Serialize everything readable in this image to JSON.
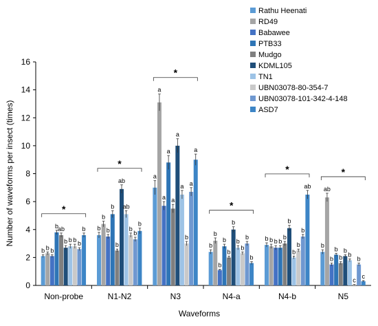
{
  "chart_data": {
    "type": "bar",
    "title": "",
    "xlabel": "Waveforms",
    "ylabel": "Number of waveforms per insect (times)",
    "ylim": [
      0,
      16
    ],
    "yticks": [
      0,
      2,
      4,
      6,
      8,
      10,
      12,
      14,
      16
    ],
    "categories": [
      "Non-probe",
      "N1-N2",
      "N3",
      "N4-a",
      "N4-b",
      "N5"
    ],
    "legend_position": "top-right",
    "grid": false,
    "series": [
      {
        "name": "Rathu Heenati",
        "color": "#5b9bd5",
        "values": [
          2.1,
          3.6,
          7.0,
          2.4,
          2.9,
          2.4
        ],
        "errors": [
          0.1,
          0.2,
          0.5,
          0.15,
          0.15,
          0.15
        ],
        "letters": [
          "b",
          "b",
          "a",
          "b",
          "b",
          "b"
        ]
      },
      {
        "name": "RD49",
        "color": "#a5a5a5",
        "values": [
          2.3,
          4.4,
          13.1,
          3.2,
          2.8,
          6.3
        ],
        "errors": [
          0.1,
          0.2,
          0.6,
          0.2,
          0.15,
          0.3
        ],
        "letters": [
          "b",
          "b",
          "a",
          "b",
          "b",
          "ab"
        ]
      },
      {
        "name": "Babawee",
        "color": "#4472c4",
        "values": [
          2.1,
          3.5,
          5.7,
          1.1,
          2.7,
          1.5
        ],
        "errors": [
          0.1,
          0.15,
          0.3,
          0.05,
          0.15,
          0.1
        ],
        "letters": [
          "b",
          "b",
          "a",
          "b",
          "b",
          "b"
        ]
      },
      {
        "name": "PTB33",
        "color": "#2e75b6",
        "values": [
          3.8,
          5.1,
          8.8,
          2.8,
          2.7,
          2.2
        ],
        "errors": [
          0.15,
          0.25,
          0.5,
          0.15,
          0.15,
          0.1
        ],
        "letters": [
          "b",
          "b",
          "a",
          "b",
          "b",
          "b"
        ]
      },
      {
        "name": "Mudgo",
        "color": "#7f7f7f",
        "values": [
          3.6,
          2.5,
          5.5,
          2.0,
          3.0,
          1.6
        ],
        "errors": [
          0.15,
          0.1,
          0.3,
          0.1,
          0.15,
          0.1
        ],
        "letters": [
          "ab",
          "b",
          "a",
          "b",
          "b",
          "b"
        ]
      },
      {
        "name": "KDML105",
        "color": "#1f4e79",
        "values": [
          2.7,
          6.9,
          10.0,
          4.0,
          4.1,
          2.1
        ],
        "errors": [
          0.15,
          0.3,
          0.5,
          0.2,
          0.2,
          0.1
        ],
        "letters": [
          "b",
          "ab",
          "a",
          "b",
          "b",
          "b"
        ]
      },
      {
        "name": "TN1",
        "color": "#9dc3e6",
        "values": [
          2.8,
          5.1,
          6.5,
          2.7,
          2.0,
          1.8
        ],
        "errors": [
          0.15,
          0.25,
          0.3,
          0.15,
          0.1,
          0.1
        ],
        "letters": [
          "b",
          "ab",
          "a",
          "b",
          "b",
          "b"
        ]
      },
      {
        "name": "UBN03078-80-354-7",
        "color": "#c9c9c9",
        "values": [
          2.8,
          3.6,
          3.0,
          2.3,
          2.5,
          0.05
        ],
        "errors": [
          0.15,
          0.15,
          0.15,
          0.1,
          0.1,
          0.02
        ],
        "letters": [
          "b",
          "b",
          "b",
          "b",
          "b",
          "c"
        ]
      },
      {
        "name": "UBN03078-101-342-4-148",
        "color": "#6f98d0",
        "values": [
          2.6,
          3.3,
          6.7,
          3.0,
          3.5,
          1.5
        ],
        "errors": [
          0.1,
          0.15,
          0.3,
          0.15,
          0.15,
          0.1
        ],
        "letters": [
          "b",
          "b",
          "a",
          "b",
          "b",
          "b"
        ]
      },
      {
        "name": "ASD7",
        "color": "#3d85c6",
        "values": [
          3.6,
          3.9,
          9.0,
          1.6,
          6.5,
          0.3
        ],
        "errors": [
          0.15,
          0.2,
          0.4,
          0.1,
          0.3,
          0.05
        ],
        "letters": [
          "b",
          "b",
          "a",
          "b",
          "ab",
          "c"
        ]
      }
    ],
    "significance_marker": "*"
  }
}
